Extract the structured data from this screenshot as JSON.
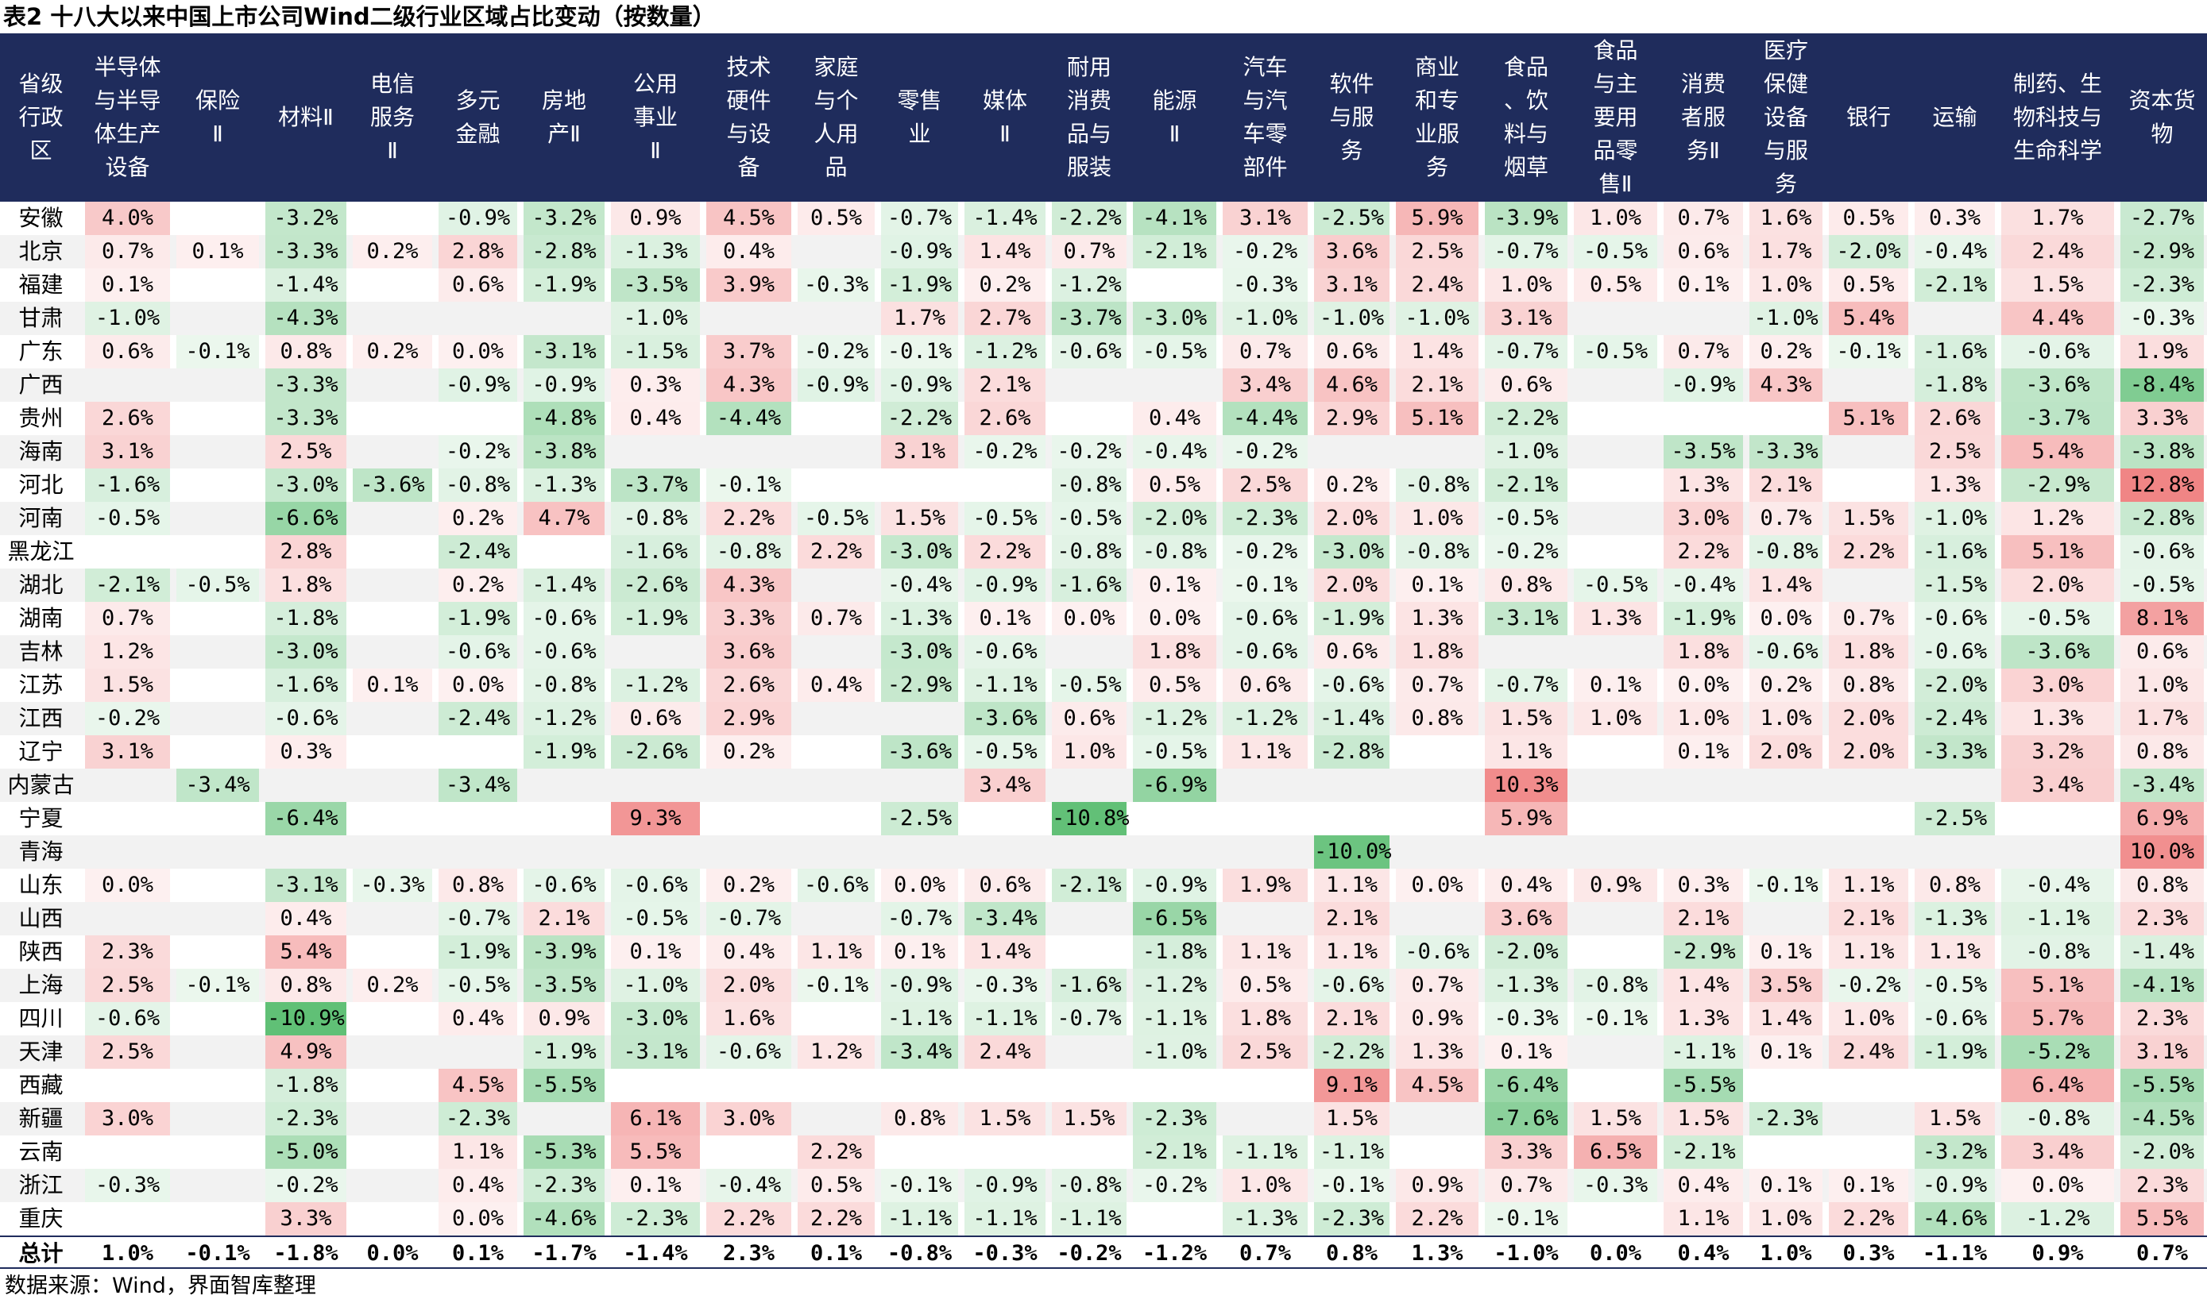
{
  "title": "表2 十八大以来中国上市公司Wind二级行业区域占比变动（按数量）",
  "source": "数据来源：Wind，界面智库整理",
  "colors": {
    "header_bg": "#1f2c5c",
    "header_text": "#ffffff",
    "positive_max": "#f08585",
    "negative_max": "#5fbf75",
    "row_stripe": "#f2f2f2"
  },
  "chart_data": {
    "type": "table",
    "title": "表2 十八大以来中国上市公司Wind二级行业区域占比变动（按数量）",
    "first_col_header": "省级行政区",
    "columns": [
      "半导体与半导体生产设备",
      "保险Ⅱ",
      "材料Ⅱ",
      "电信服务Ⅱ",
      "多元金融",
      "房地产Ⅱ",
      "公用事业Ⅱ",
      "技术硬件与设备",
      "家庭与个人用品",
      "零售业",
      "媒体Ⅱ",
      "耐用消费品与服装",
      "能源Ⅱ",
      "汽车与汽车零部件",
      "软件与服务",
      "商业和专业服务",
      "食品、饮料与烟草",
      "食品与主要用品零售Ⅱ",
      "消费者服务Ⅱ",
      "医疗保健设备与服务",
      "银行",
      "运输",
      "制药、生物科技与生命科学",
      "资本货物"
    ],
    "rows": [
      {
        "name": "安徽",
        "values": [
          "4.0%",
          "",
          "-3.2%",
          "",
          "-0.9%",
          "-3.2%",
          "0.9%",
          "4.5%",
          "0.5%",
          "-0.7%",
          "-1.4%",
          "-2.2%",
          "-4.1%",
          "3.1%",
          "-2.5%",
          "5.9%",
          "-3.9%",
          "1.0%",
          "0.7%",
          "1.6%",
          "0.5%",
          "0.3%",
          "1.7%",
          "-2.7%"
        ]
      },
      {
        "name": "北京",
        "values": [
          "0.7%",
          "0.1%",
          "-3.3%",
          "0.2%",
          "2.8%",
          "-2.8%",
          "-1.3%",
          "0.4%",
          "",
          "-0.9%",
          "1.4%",
          "0.7%",
          "-2.1%",
          "-0.2%",
          "3.6%",
          "2.5%",
          "-0.7%",
          "-0.5%",
          "0.6%",
          "1.7%",
          "-2.0%",
          "-0.4%",
          "2.4%",
          "-2.9%"
        ]
      },
      {
        "name": "福建",
        "values": [
          "0.1%",
          "",
          "-1.4%",
          "",
          "0.6%",
          "-1.9%",
          "-3.5%",
          "3.9%",
          "-0.3%",
          "-1.9%",
          "0.2%",
          "-1.2%",
          "",
          "-0.3%",
          "3.1%",
          "2.4%",
          "1.0%",
          "0.5%",
          "0.1%",
          "1.0%",
          "0.5%",
          "-2.1%",
          "1.5%",
          "-2.3%"
        ]
      },
      {
        "name": "甘肃",
        "values": [
          "-1.0%",
          "",
          "-4.3%",
          "",
          "",
          "",
          "-1.0%",
          "",
          "",
          "1.7%",
          "2.7%",
          "-3.7%",
          "-3.0%",
          "-1.0%",
          "-1.0%",
          "-1.0%",
          "3.1%",
          "",
          "",
          "-1.0%",
          "5.4%",
          "",
          "4.4%",
          "-0.3%"
        ]
      },
      {
        "name": "广东",
        "values": [
          "0.6%",
          "-0.1%",
          "0.8%",
          "0.2%",
          "0.0%",
          "-3.1%",
          "-1.5%",
          "3.7%",
          "-0.2%",
          "-0.1%",
          "-1.2%",
          "-0.6%",
          "-0.5%",
          "0.7%",
          "0.6%",
          "1.4%",
          "-0.7%",
          "-0.5%",
          "0.7%",
          "0.2%",
          "-0.1%",
          "-1.6%",
          "-0.6%",
          "1.9%"
        ]
      },
      {
        "name": "广西",
        "values": [
          "",
          "",
          "-3.3%",
          "",
          "-0.9%",
          "-0.9%",
          "0.3%",
          "4.3%",
          "-0.9%",
          "-0.9%",
          "2.1%",
          "",
          "",
          "3.4%",
          "4.6%",
          "2.1%",
          "0.6%",
          "",
          "-0.9%",
          "4.3%",
          "",
          "-1.8%",
          "-3.6%",
          "-8.4%"
        ]
      },
      {
        "name": "贵州",
        "values": [
          "2.6%",
          "",
          "-3.3%",
          "",
          "",
          "-4.8%",
          "0.4%",
          "-4.4%",
          "",
          "-2.2%",
          "2.6%",
          "",
          "0.4%",
          "-4.4%",
          "2.9%",
          "5.1%",
          "-2.2%",
          "",
          "",
          "",
          "5.1%",
          "2.6%",
          "-3.7%",
          "3.3%"
        ]
      },
      {
        "name": "海南",
        "values": [
          "3.1%",
          "",
          "2.5%",
          "",
          "-0.2%",
          "-3.8%",
          "",
          "",
          "",
          "3.1%",
          "-0.2%",
          "-0.2%",
          "-0.4%",
          "-0.2%",
          "",
          "",
          "-1.0%",
          "",
          "-3.5%",
          "-3.3%",
          "",
          "2.5%",
          "5.4%",
          "-3.8%"
        ]
      },
      {
        "name": "河北",
        "values": [
          "-1.6%",
          "",
          "-3.0%",
          "-3.6%",
          "-0.8%",
          "-1.3%",
          "-3.7%",
          "-0.1%",
          "",
          "",
          "",
          "-0.8%",
          "0.5%",
          "2.5%",
          "0.2%",
          "-0.8%",
          "-2.1%",
          "",
          "1.3%",
          "2.1%",
          "",
          "1.3%",
          "-2.9%",
          "12.8%"
        ]
      },
      {
        "name": "河南",
        "values": [
          "-0.5%",
          "",
          "-6.6%",
          "",
          "0.2%",
          "4.7%",
          "-0.8%",
          "2.2%",
          "-0.5%",
          "1.5%",
          "-0.5%",
          "-0.5%",
          "-2.0%",
          "-2.3%",
          "2.0%",
          "1.0%",
          "-0.5%",
          "",
          "3.0%",
          "0.7%",
          "1.5%",
          "-1.0%",
          "1.2%",
          "-2.8%"
        ]
      },
      {
        "name": "黑龙江",
        "values": [
          "",
          "",
          "2.8%",
          "",
          "-2.4%",
          "",
          "-1.6%",
          "-0.8%",
          "2.2%",
          "-3.0%",
          "2.2%",
          "-0.8%",
          "-0.8%",
          "-0.2%",
          "-3.0%",
          "-0.8%",
          "-0.2%",
          "",
          "2.2%",
          "-0.8%",
          "2.2%",
          "-1.6%",
          "5.1%",
          "-0.6%"
        ]
      },
      {
        "name": "湖北",
        "values": [
          "-2.1%",
          "-0.5%",
          "1.8%",
          "",
          "0.2%",
          "-1.4%",
          "-2.6%",
          "4.3%",
          "",
          "-0.4%",
          "-0.9%",
          "-1.6%",
          "0.1%",
          "-0.1%",
          "2.0%",
          "0.1%",
          "0.8%",
          "-0.5%",
          "-0.4%",
          "1.4%",
          "",
          "-1.5%",
          "2.0%",
          "-0.5%"
        ]
      },
      {
        "name": "湖南",
        "values": [
          "0.7%",
          "",
          "-1.8%",
          "",
          "-1.9%",
          "-0.6%",
          "-1.9%",
          "3.3%",
          "0.7%",
          "-1.3%",
          "0.1%",
          "0.0%",
          "0.0%",
          "-0.6%",
          "-1.9%",
          "1.3%",
          "-3.1%",
          "1.3%",
          "-1.9%",
          "0.0%",
          "0.7%",
          "-0.6%",
          "-0.5%",
          "8.1%"
        ]
      },
      {
        "name": "吉林",
        "values": [
          "1.2%",
          "",
          "-3.0%",
          "",
          "-0.6%",
          "-0.6%",
          "",
          "3.6%",
          "",
          "-3.0%",
          "-0.6%",
          "",
          "1.8%",
          "-0.6%",
          "0.6%",
          "1.8%",
          "",
          "",
          "1.8%",
          "-0.6%",
          "1.8%",
          "-0.6%",
          "-3.6%",
          "0.6%"
        ]
      },
      {
        "name": "江苏",
        "values": [
          "1.5%",
          "",
          "-1.6%",
          "0.1%",
          "0.0%",
          "-0.8%",
          "-1.2%",
          "2.6%",
          "0.4%",
          "-2.9%",
          "-1.1%",
          "-0.5%",
          "0.5%",
          "0.6%",
          "-0.6%",
          "0.7%",
          "-0.7%",
          "0.1%",
          "0.0%",
          "0.2%",
          "0.8%",
          "-2.0%",
          "3.0%",
          "1.0%"
        ]
      },
      {
        "name": "江西",
        "values": [
          "-0.2%",
          "",
          "-0.6%",
          "",
          "-2.4%",
          "-1.2%",
          "0.6%",
          "2.9%",
          "",
          "",
          "-3.6%",
          "0.6%",
          "-1.2%",
          "-1.2%",
          "-1.4%",
          "0.8%",
          "1.5%",
          "1.0%",
          "1.0%",
          "1.0%",
          "2.0%",
          "-2.4%",
          "1.3%",
          "1.7%"
        ]
      },
      {
        "name": "辽宁",
        "values": [
          "3.1%",
          "",
          "0.3%",
          "",
          "",
          "-1.9%",
          "-2.6%",
          "0.2%",
          "",
          "-3.6%",
          "-0.5%",
          "1.0%",
          "-0.5%",
          "1.1%",
          "-2.8%",
          "",
          "1.1%",
          "",
          "0.1%",
          "2.0%",
          "2.0%",
          "-3.3%",
          "3.2%",
          "0.8%"
        ]
      },
      {
        "name": "内蒙古",
        "values": [
          "",
          "-3.4%",
          "",
          "",
          "-3.4%",
          "",
          "",
          "",
          "",
          "",
          "3.4%",
          "",
          "-6.9%",
          "",
          "",
          "",
          "10.3%",
          "",
          "",
          "",
          "",
          "",
          "3.4%",
          "-3.4%"
        ]
      },
      {
        "name": "宁夏",
        "values": [
          "",
          "",
          "-6.4%",
          "",
          "",
          "",
          "9.3%",
          "",
          "",
          "-2.5%",
          "",
          "-10.8%",
          "",
          "",
          "",
          "",
          "5.9%",
          "",
          "",
          "",
          "",
          "-2.5%",
          "",
          "6.9%"
        ]
      },
      {
        "name": "青海",
        "values": [
          "",
          "",
          "",
          "",
          "",
          "",
          "",
          "",
          "",
          "",
          "",
          "",
          "",
          "",
          "-10.0%",
          "",
          "",
          "",
          "",
          "",
          "",
          "",
          "",
          "10.0%"
        ]
      },
      {
        "name": "山东",
        "values": [
          "0.0%",
          "",
          "-3.1%",
          "-0.3%",
          "0.8%",
          "-0.6%",
          "-0.6%",
          "0.2%",
          "-0.6%",
          "0.0%",
          "0.6%",
          "-2.1%",
          "-0.9%",
          "1.9%",
          "1.1%",
          "0.0%",
          "0.4%",
          "0.9%",
          "0.3%",
          "-0.1%",
          "1.1%",
          "0.8%",
          "-0.4%",
          "0.8%"
        ]
      },
      {
        "name": "山西",
        "values": [
          "",
          "",
          "0.4%",
          "",
          "-0.7%",
          "2.1%",
          "-0.5%",
          "-0.7%",
          "",
          "-0.7%",
          "-3.4%",
          "",
          "-6.5%",
          "",
          "2.1%",
          "",
          "3.6%",
          "",
          "2.1%",
          "",
          "2.1%",
          "-1.3%",
          "-1.1%",
          "2.3%"
        ]
      },
      {
        "name": "陕西",
        "values": [
          "2.3%",
          "",
          "5.4%",
          "",
          "-1.9%",
          "-3.9%",
          "0.1%",
          "0.4%",
          "1.1%",
          "0.1%",
          "1.4%",
          "",
          "-1.8%",
          "1.1%",
          "1.1%",
          "-0.6%",
          "-2.0%",
          "",
          "-2.9%",
          "0.1%",
          "1.1%",
          "1.1%",
          "-0.8%",
          "-1.4%"
        ]
      },
      {
        "name": "上海",
        "values": [
          "2.5%",
          "-0.1%",
          "0.8%",
          "0.2%",
          "-0.5%",
          "-3.5%",
          "-1.0%",
          "2.0%",
          "-0.1%",
          "-0.9%",
          "-0.3%",
          "-1.6%",
          "-1.2%",
          "0.5%",
          "-0.6%",
          "0.7%",
          "-1.3%",
          "-0.8%",
          "1.4%",
          "3.5%",
          "-0.2%",
          "-0.5%",
          "5.1%",
          "-4.1%"
        ]
      },
      {
        "name": "四川",
        "values": [
          "-0.6%",
          "",
          "-10.9%",
          "",
          "0.4%",
          "0.9%",
          "-3.0%",
          "1.6%",
          "",
          "-1.1%",
          "-1.1%",
          "-0.7%",
          "-1.1%",
          "1.8%",
          "2.1%",
          "0.9%",
          "-0.3%",
          "-0.1%",
          "1.3%",
          "1.4%",
          "1.0%",
          "-0.6%",
          "5.7%",
          "2.3%"
        ]
      },
      {
        "name": "天津",
        "values": [
          "2.5%",
          "",
          "4.9%",
          "",
          "",
          "-1.9%",
          "-3.1%",
          "-0.6%",
          "1.2%",
          "-3.4%",
          "2.4%",
          "",
          "-1.0%",
          "2.5%",
          "-2.2%",
          "1.3%",
          "0.1%",
          "",
          "-1.1%",
          "0.1%",
          "2.4%",
          "-1.9%",
          "-5.2%",
          "3.1%"
        ]
      },
      {
        "name": "西藏",
        "values": [
          "",
          "",
          "-1.8%",
          "",
          "4.5%",
          "-5.5%",
          "",
          "",
          "",
          "",
          "",
          "",
          "",
          "",
          "9.1%",
          "4.5%",
          "-6.4%",
          "",
          "-5.5%",
          "",
          "",
          "",
          "6.4%",
          "-5.5%"
        ]
      },
      {
        "name": "新疆",
        "values": [
          "3.0%",
          "",
          "-2.3%",
          "",
          "-2.3%",
          "",
          "6.1%",
          "3.0%",
          "",
          "0.8%",
          "1.5%",
          "1.5%",
          "-2.3%",
          "",
          "1.5%",
          "",
          "-7.6%",
          "1.5%",
          "1.5%",
          "-2.3%",
          "",
          "1.5%",
          "-0.8%",
          "-4.5%"
        ]
      },
      {
        "name": "云南",
        "values": [
          "",
          "",
          "-5.0%",
          "",
          "1.1%",
          "-5.3%",
          "5.5%",
          "",
          "2.2%",
          "",
          "",
          "",
          "-2.1%",
          "-1.1%",
          "-1.1%",
          "",
          "3.3%",
          "6.5%",
          "-2.1%",
          "",
          "",
          "-3.2%",
          "3.4%",
          "-2.0%"
        ]
      },
      {
        "name": "浙江",
        "values": [
          "-0.3%",
          "",
          "-0.2%",
          "",
          "0.4%",
          "-2.3%",
          "0.1%",
          "-0.4%",
          "0.5%",
          "-0.1%",
          "-0.9%",
          "-0.8%",
          "-0.2%",
          "1.0%",
          "-0.1%",
          "0.9%",
          "0.7%",
          "-0.3%",
          "0.4%",
          "0.1%",
          "0.1%",
          "-0.9%",
          "0.0%",
          "2.3%"
        ]
      },
      {
        "name": "重庆",
        "values": [
          "",
          "",
          "3.3%",
          "",
          "0.0%",
          "-4.6%",
          "-2.3%",
          "2.2%",
          "2.2%",
          "-1.1%",
          "-1.1%",
          "-1.1%",
          "",
          "-1.3%",
          "-2.3%",
          "2.2%",
          "-0.1%",
          "",
          "1.1%",
          "1.0%",
          "2.2%",
          "-4.6%",
          "-1.2%",
          "5.5%"
        ]
      }
    ],
    "total": {
      "name": "总计",
      "values": [
        "1.0%",
        "-0.1%",
        "-1.8%",
        "0.0%",
        "0.1%",
        "-1.7%",
        "-1.4%",
        "2.3%",
        "0.1%",
        "-0.8%",
        "-0.3%",
        "-0.2%",
        "-1.2%",
        "0.7%",
        "0.8%",
        "1.3%",
        "-1.0%",
        "0.0%",
        "0.4%",
        "1.0%",
        "0.3%",
        "-1.1%",
        "0.9%",
        "0.7%"
      ]
    }
  },
  "header_lines": [
    [
      "省级",
      "行政",
      "区"
    ],
    [
      "半导体",
      "与半导",
      "体生产",
      "设备"
    ],
    [
      "保险",
      "Ⅱ"
    ],
    [
      "材料Ⅱ"
    ],
    [
      "电信",
      "服务",
      "Ⅱ"
    ],
    [
      "多元",
      "金融"
    ],
    [
      "房地",
      "产Ⅱ"
    ],
    [
      "公用",
      "事业",
      "Ⅱ"
    ],
    [
      "技术",
      "硬件",
      "与设",
      "备"
    ],
    [
      "家庭",
      "与个",
      "人用",
      "品"
    ],
    [
      "零售",
      "业"
    ],
    [
      "媒体",
      "Ⅱ"
    ],
    [
      "耐用",
      "消费",
      "品与",
      "服装"
    ],
    [
      "能源",
      "Ⅱ"
    ],
    [
      "汽车",
      "与汽",
      "车零",
      "部件"
    ],
    [
      "软件",
      "与服",
      "务"
    ],
    [
      "商业",
      "和专",
      "业服",
      "务"
    ],
    [
      "食品",
      "、饮",
      "料与",
      "烟草"
    ],
    [
      "食品",
      "与主",
      "要用",
      "品零",
      "售Ⅱ"
    ],
    [
      "消费",
      "者服",
      "务Ⅱ"
    ],
    [
      "医疗",
      "保健",
      "设备",
      "与服",
      "务"
    ],
    [
      "银行"
    ],
    [
      "运输"
    ],
    [
      "制药、生",
      "物科技与",
      "生命科学"
    ],
    [
      "资本货",
      "物"
    ]
  ]
}
